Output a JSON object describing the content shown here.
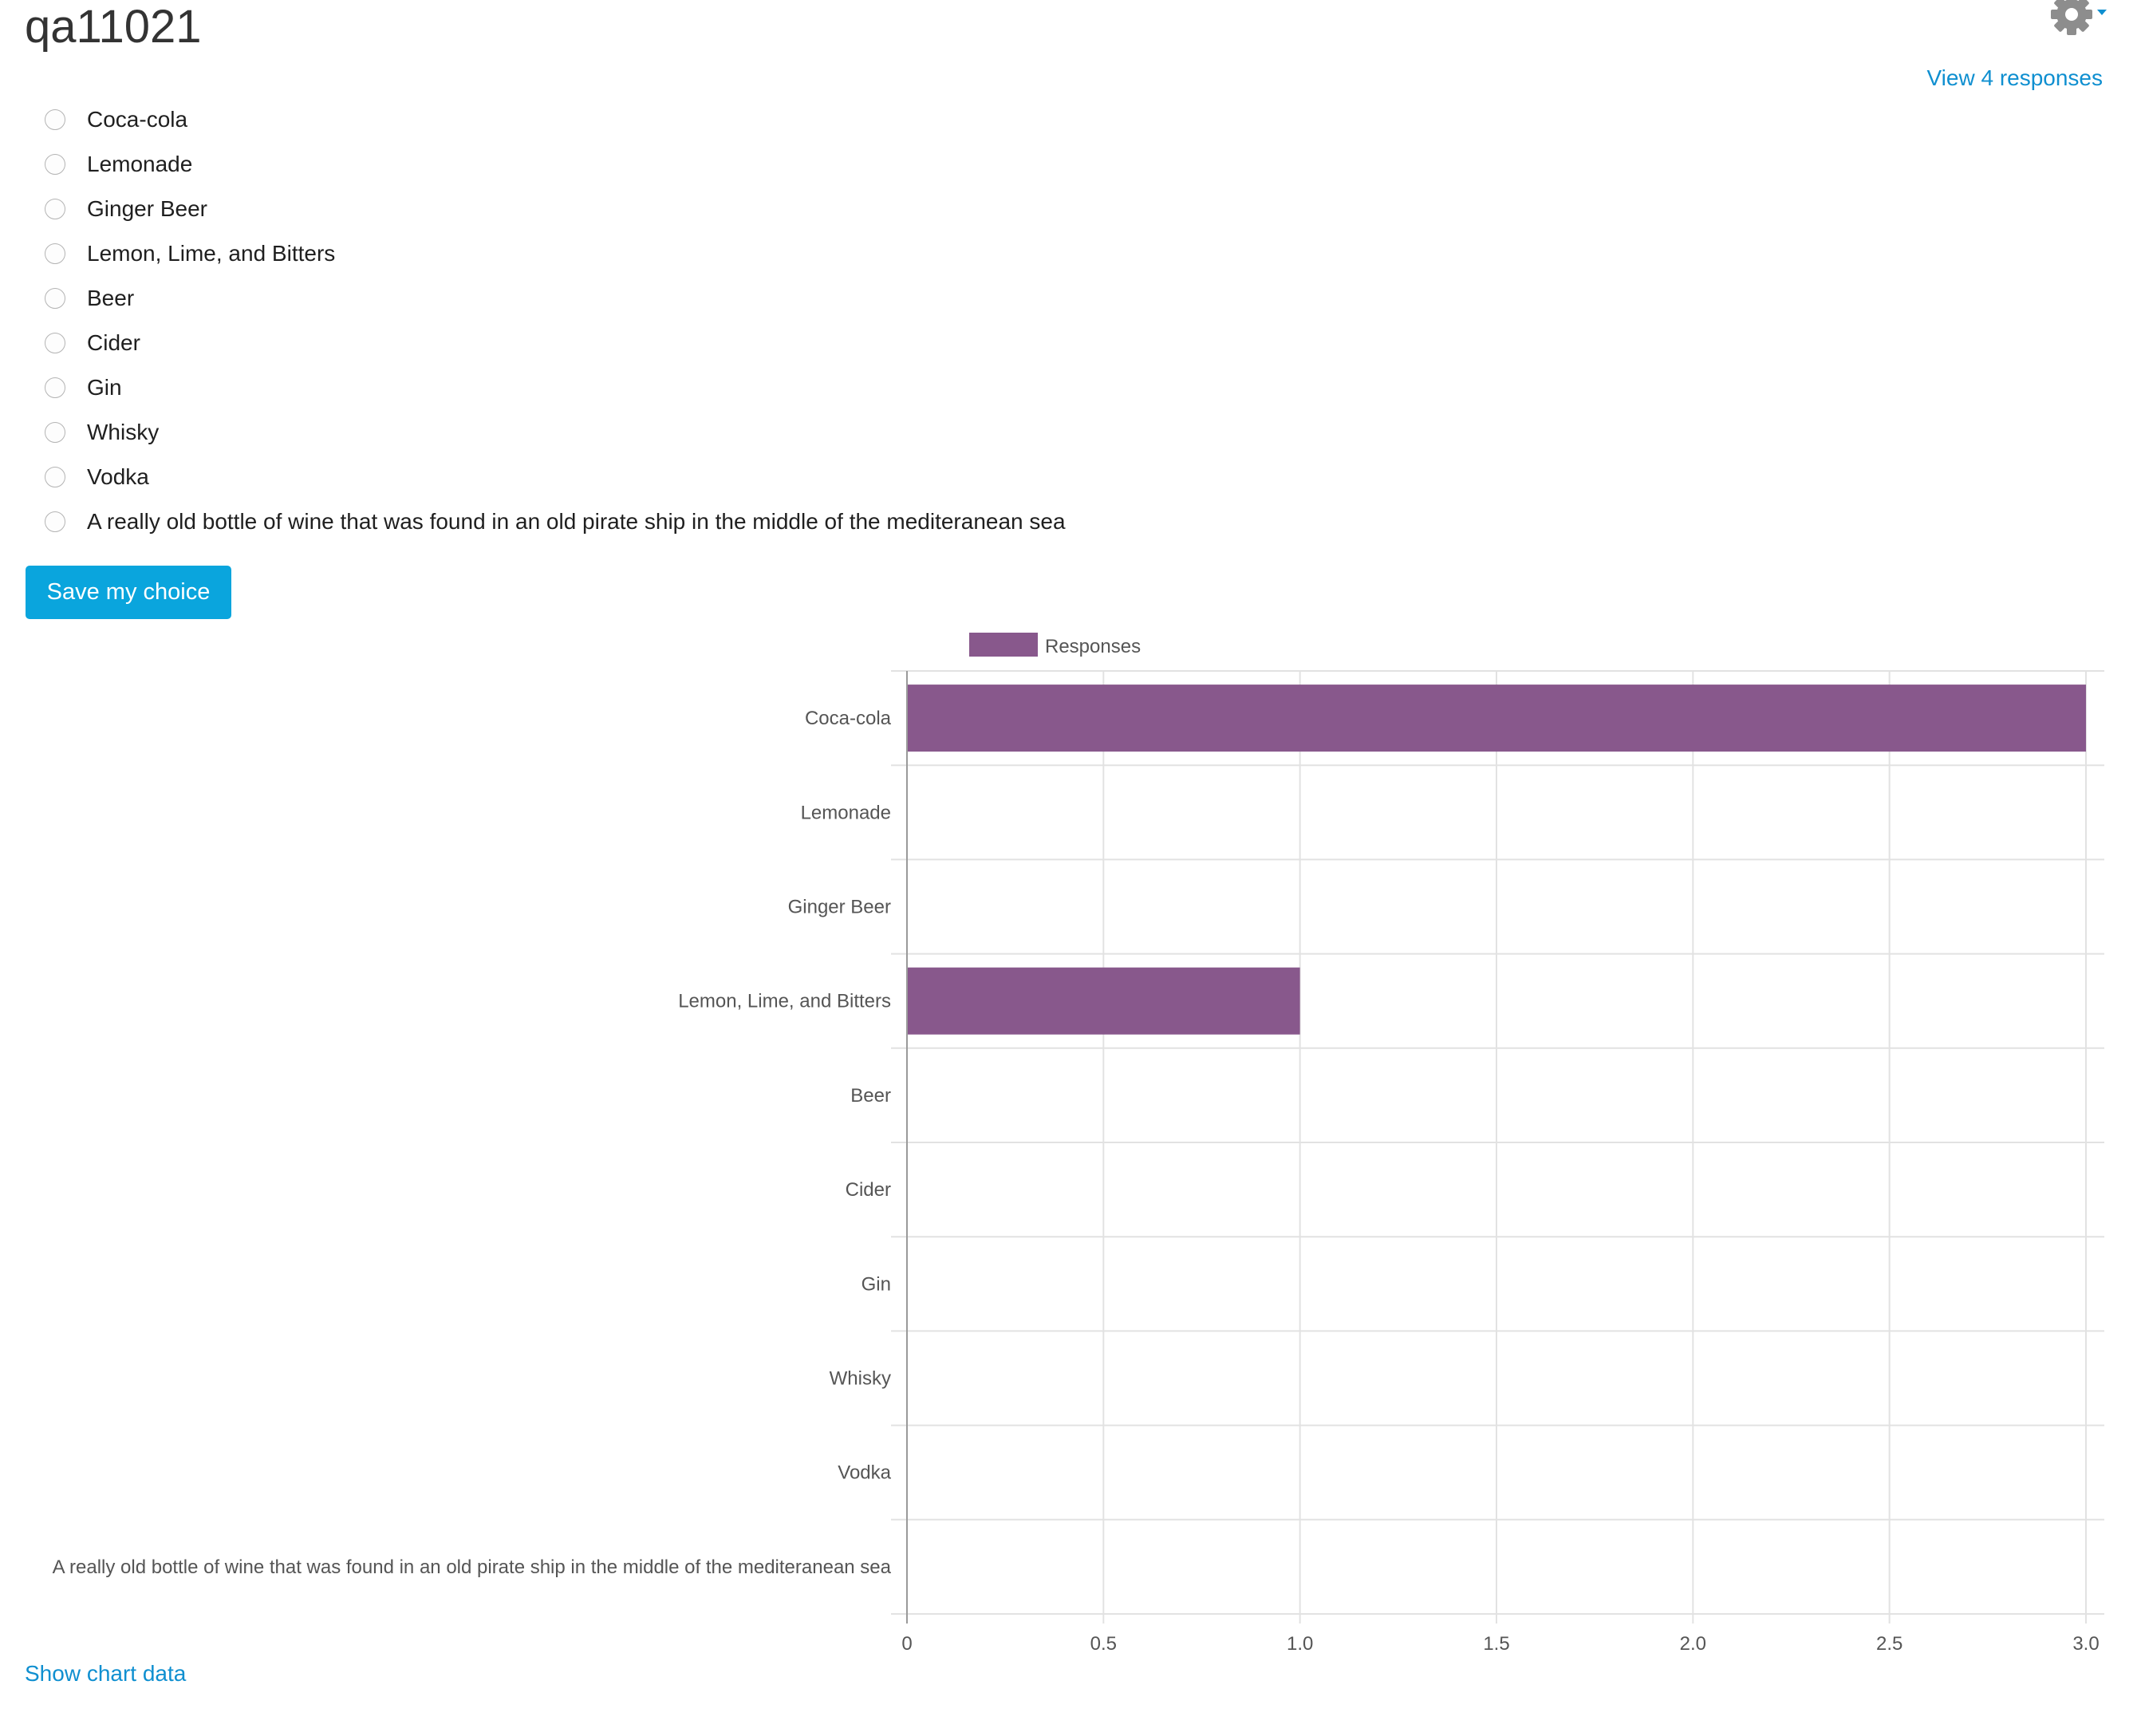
{
  "page": {
    "title": "qa11021"
  },
  "header": {
    "settings_icon": "gear-icon",
    "settings_caret_icon": "caret-down-icon",
    "view_responses_label": "View 4 responses"
  },
  "colors": {
    "accent": "#0aa5dd",
    "link": "#0f8fd0",
    "bar": "#88588c"
  },
  "form": {
    "options": [
      {
        "label": "Coca-cola",
        "selected": false
      },
      {
        "label": "Lemonade",
        "selected": false
      },
      {
        "label": "Ginger Beer",
        "selected": false
      },
      {
        "label": "Lemon, Lime, and Bitters",
        "selected": false
      },
      {
        "label": "Beer",
        "selected": false
      },
      {
        "label": "Cider",
        "selected": false
      },
      {
        "label": "Gin",
        "selected": false
      },
      {
        "label": "Whisky",
        "selected": false
      },
      {
        "label": "Vodka",
        "selected": false
      },
      {
        "label": "A really old bottle of wine that was found in an old pirate ship in the middle of the mediteranean sea",
        "selected": false
      }
    ],
    "save_label": "Save my choice"
  },
  "chart_data": {
    "type": "bar",
    "orientation": "horizontal",
    "categories": [
      "Coca-cola",
      "Lemonade",
      "Ginger Beer",
      "Lemon, Lime, and Bitters",
      "Beer",
      "Cider",
      "Gin",
      "Whisky",
      "Vodka",
      "A really old bottle of wine that was found in an old pirate ship in the middle of the mediteranean sea"
    ],
    "series": [
      {
        "name": "Responses",
        "values": [
          3,
          0,
          0,
          1,
          0,
          0,
          0,
          0,
          0,
          0
        ]
      }
    ],
    "xlim": [
      0,
      3
    ],
    "x_ticks": [
      "0",
      "0.5",
      "1.0",
      "1.5",
      "2.0",
      "2.5",
      "3.0"
    ],
    "grid": true,
    "legend_position": "top"
  },
  "footer": {
    "show_chart_data_label": "Show chart data"
  }
}
